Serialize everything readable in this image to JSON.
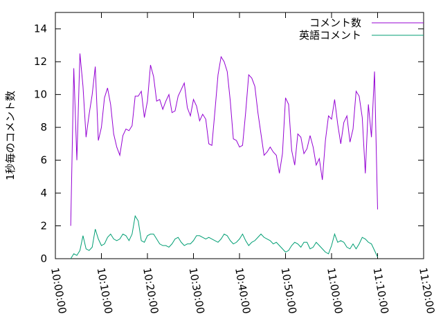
{
  "chart_data": {
    "type": "line",
    "ylabel": "1秒毎のコメント数",
    "x": [
      "10:03:20",
      "10:04:00",
      "10:04:40",
      "10:05:20",
      "10:06:00",
      "10:06:40",
      "10:07:20",
      "10:08:00",
      "10:08:40",
      "10:09:20",
      "10:10:00",
      "10:10:40",
      "10:11:20",
      "10:12:00",
      "10:12:40",
      "10:13:20",
      "10:14:00",
      "10:14:40",
      "10:15:20",
      "10:16:00",
      "10:16:40",
      "10:17:20",
      "10:18:00",
      "10:18:40",
      "10:19:20",
      "10:20:00",
      "10:20:40",
      "10:21:20",
      "10:22:00",
      "10:22:40",
      "10:23:20",
      "10:24:00",
      "10:24:40",
      "10:25:20",
      "10:26:00",
      "10:26:40",
      "10:27:20",
      "10:28:00",
      "10:28:40",
      "10:29:20",
      "10:30:00",
      "10:30:40",
      "10:31:20",
      "10:32:00",
      "10:32:40",
      "10:33:20",
      "10:34:00",
      "10:34:40",
      "10:35:20",
      "10:36:00",
      "10:36:40",
      "10:37:20",
      "10:38:00",
      "10:38:40",
      "10:39:20",
      "10:40:00",
      "10:40:40",
      "10:41:20",
      "10:42:00",
      "10:42:40",
      "10:43:20",
      "10:44:00",
      "10:44:40",
      "10:45:20",
      "10:46:00",
      "10:46:40",
      "10:47:20",
      "10:48:00",
      "10:48:40",
      "10:49:20",
      "10:50:00",
      "10:50:40",
      "10:51:20",
      "10:52:00",
      "10:52:40",
      "10:53:20",
      "10:54:00",
      "10:54:40",
      "10:55:20",
      "10:56:00",
      "10:56:40",
      "10:57:20",
      "10:58:00",
      "10:58:40",
      "10:59:20",
      "11:00:00",
      "11:00:40",
      "11:01:20",
      "11:02:00",
      "11:02:40",
      "11:03:20",
      "11:04:00",
      "11:04:40",
      "11:05:20",
      "11:06:00",
      "11:06:40",
      "11:07:20",
      "11:08:00",
      "11:08:40",
      "11:09:20",
      "11:10:00"
    ],
    "series": [
      {
        "name": "コメント数",
        "color": "#9400d3",
        "values": [
          2.0,
          11.6,
          6.0,
          12.5,
          10.5,
          7.4,
          8.8,
          10.0,
          11.7,
          7.2,
          8.0,
          9.8,
          10.4,
          9.4,
          7.6,
          6.8,
          6.3,
          7.5,
          7.9,
          7.8,
          8.1,
          9.9,
          9.9,
          10.2,
          8.6,
          9.6,
          11.8,
          11.1,
          9.6,
          9.7,
          9.1,
          9.6,
          10.0,
          8.9,
          9.0,
          9.9,
          10.3,
          10.7,
          9.2,
          8.7,
          9.7,
          9.3,
          8.4,
          8.8,
          8.5,
          7.0,
          6.9,
          9.0,
          11.2,
          12.3,
          12.0,
          11.4,
          9.6,
          7.3,
          7.2,
          6.8,
          6.9,
          8.9,
          11.2,
          11.0,
          10.5,
          8.9,
          7.6,
          6.3,
          6.5,
          6.8,
          6.5,
          6.3,
          5.2,
          6.4,
          9.8,
          9.4,
          6.6,
          5.7,
          7.6,
          7.4,
          6.4,
          6.7,
          7.5,
          6.8,
          5.7,
          6.1,
          4.8,
          7.2,
          8.7,
          8.5,
          9.7,
          8.2,
          7.0,
          8.3,
          8.7,
          7.1,
          7.9,
          10.2,
          9.9,
          8.6,
          5.2,
          9.4,
          7.4,
          11.4,
          3.0
        ]
      },
      {
        "name": "英語コメント",
        "color": "#009e73",
        "values": [
          0,
          0.3,
          0.2,
          0.5,
          1.4,
          0.6,
          0.5,
          0.7,
          1.8,
          1.2,
          0.8,
          0.9,
          1.3,
          1.5,
          1.2,
          1.1,
          1.2,
          1.5,
          1.4,
          1.1,
          1.5,
          2.6,
          2.3,
          1.1,
          1.0,
          1.4,
          1.5,
          1.5,
          1.2,
          0.9,
          0.8,
          0.8,
          0.7,
          0.9,
          1.2,
          1.3,
          1.0,
          0.8,
          0.9,
          0.9,
          1.1,
          1.4,
          1.4,
          1.3,
          1.2,
          1.3,
          1.2,
          1.1,
          1.0,
          1.2,
          1.5,
          1.4,
          1.1,
          0.9,
          1.0,
          1.2,
          1.5,
          1.1,
          0.8,
          1.0,
          1.1,
          1.3,
          1.5,
          1.3,
          1.2,
          1.1,
          0.9,
          1.0,
          0.8,
          0.6,
          0.4,
          0.5,
          0.8,
          1.0,
          0.9,
          0.7,
          1.0,
          1.0,
          0.6,
          0.7,
          1.0,
          0.8,
          0.6,
          0.4,
          0.3,
          0.8,
          1.5,
          1.0,
          1.1,
          1.0,
          0.7,
          0.6,
          0.9,
          0.6,
          0.9,
          1.3,
          1.2,
          1.0,
          0.9,
          0.5,
          0.1
        ]
      }
    ],
    "xlim": [
      "10:00:00",
      "11:20:00"
    ],
    "xticks": [
      "10:00:00",
      "10:10:00",
      "10:20:00",
      "10:30:00",
      "10:40:00",
      "10:50:00",
      "11:00:00",
      "11:10:00",
      "11:20:00"
    ],
    "ylim": [
      0,
      15
    ],
    "yticks": [
      0,
      2,
      4,
      6,
      8,
      10,
      12,
      14
    ],
    "grid": false,
    "legend": "top-right"
  }
}
